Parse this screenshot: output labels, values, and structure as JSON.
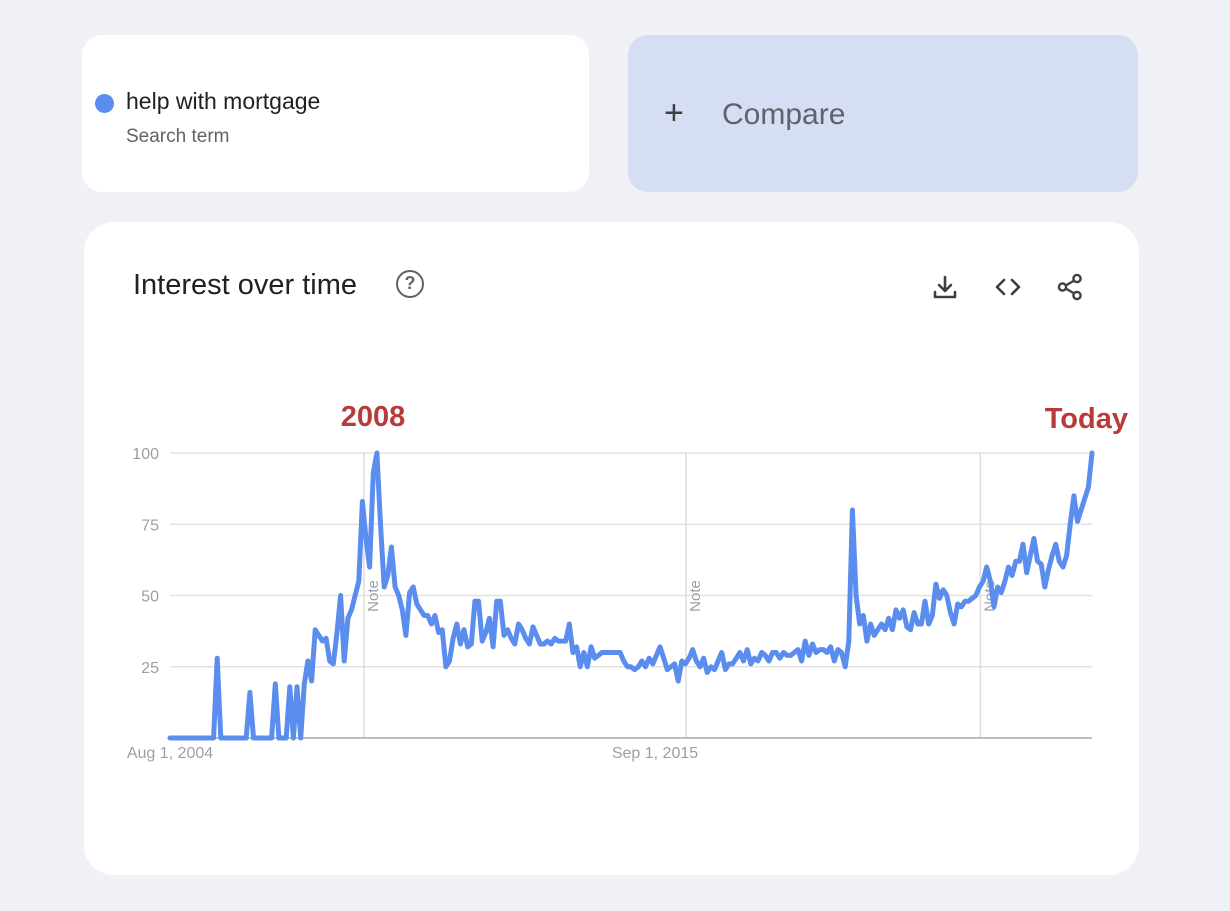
{
  "search_term": {
    "name": "help with mortgage",
    "subtitle": "Search term",
    "color": "#5b8def"
  },
  "compare": {
    "plus": "+",
    "label": "Compare"
  },
  "panel": {
    "title": "Interest over time",
    "help_icon": "help-circle-icon",
    "toolbar": [
      "download-icon",
      "embed-code-icon",
      "share-icon"
    ]
  },
  "annotations": {
    "left": "2008",
    "right": "Today",
    "color": "#b83a3a"
  },
  "chart_data": {
    "type": "line",
    "title": "",
    "xlabel": "",
    "ylabel": "",
    "ylim": [
      0,
      100
    ],
    "yticks": [
      25,
      50,
      75,
      100
    ],
    "xtick_labels": [
      "Aug 1, 2004",
      "Sep 1, 2015"
    ],
    "grid": true,
    "vertical_note_lines": [
      {
        "x": 2008.75,
        "label": "Note"
      },
      {
        "x": 2015.67,
        "label": "Note"
      },
      {
        "x": 2022.0,
        "label": "Note"
      }
    ],
    "x_start": 2004.58,
    "x_end": 2024.4,
    "series": [
      {
        "name": "help with mortgage",
        "color": "#5b8def",
        "values": [
          0,
          0,
          0,
          0,
          0,
          0,
          0,
          0,
          0,
          0,
          0,
          0,
          0,
          28,
          0,
          0,
          0,
          0,
          0,
          0,
          0,
          0,
          16,
          0,
          0,
          0,
          0,
          0,
          0,
          19,
          0,
          0,
          0,
          18,
          0,
          18,
          0,
          19,
          27,
          20,
          38,
          36,
          34,
          35,
          27,
          26,
          37,
          50,
          27,
          42,
          45,
          50,
          55,
          83,
          70,
          60,
          93,
          100,
          75,
          53,
          57,
          67,
          53,
          50,
          45,
          36,
          51,
          53,
          47,
          45,
          43,
          43,
          40,
          43,
          37,
          38,
          25,
          27,
          35,
          40,
          33,
          38,
          32,
          33,
          48,
          48,
          34,
          37,
          42,
          32,
          48,
          48,
          36,
          38,
          35,
          33,
          40,
          38,
          35,
          33,
          39,
          36,
          33,
          33,
          34,
          33,
          35,
          34,
          34,
          34,
          40,
          30,
          32,
          25,
          30,
          25,
          32,
          28,
          29,
          30,
          30,
          30,
          30,
          30,
          30,
          27,
          25,
          25,
          24,
          25,
          27,
          25,
          28,
          26,
          29,
          32,
          28,
          24,
          25,
          26,
          20,
          27,
          26,
          28,
          31,
          27,
          25,
          28,
          23,
          25,
          24,
          27,
          30,
          24,
          26,
          26,
          28,
          30,
          27,
          31,
          26,
          28,
          27,
          30,
          29,
          27,
          30,
          30,
          28,
          30,
          29,
          29,
          30,
          31,
          27,
          34,
          29,
          33,
          30,
          31,
          31,
          30,
          32,
          27,
          31,
          30,
          25,
          34,
          80,
          50,
          40,
          43,
          34,
          40,
          36,
          38,
          40,
          38,
          42,
          38,
          45,
          42,
          45,
          39,
          38,
          44,
          40,
          40,
          48,
          40,
          43,
          54,
          49,
          52,
          50,
          44,
          40,
          47,
          46,
          48,
          48,
          49,
          50,
          53,
          55,
          60,
          55,
          46,
          53,
          51,
          55,
          60,
          57,
          62,
          62,
          68,
          58,
          64,
          70,
          62,
          61,
          53,
          59,
          64,
          68,
          62,
          60,
          64,
          75,
          85,
          76,
          80,
          84,
          88,
          100
        ]
      }
    ]
  }
}
